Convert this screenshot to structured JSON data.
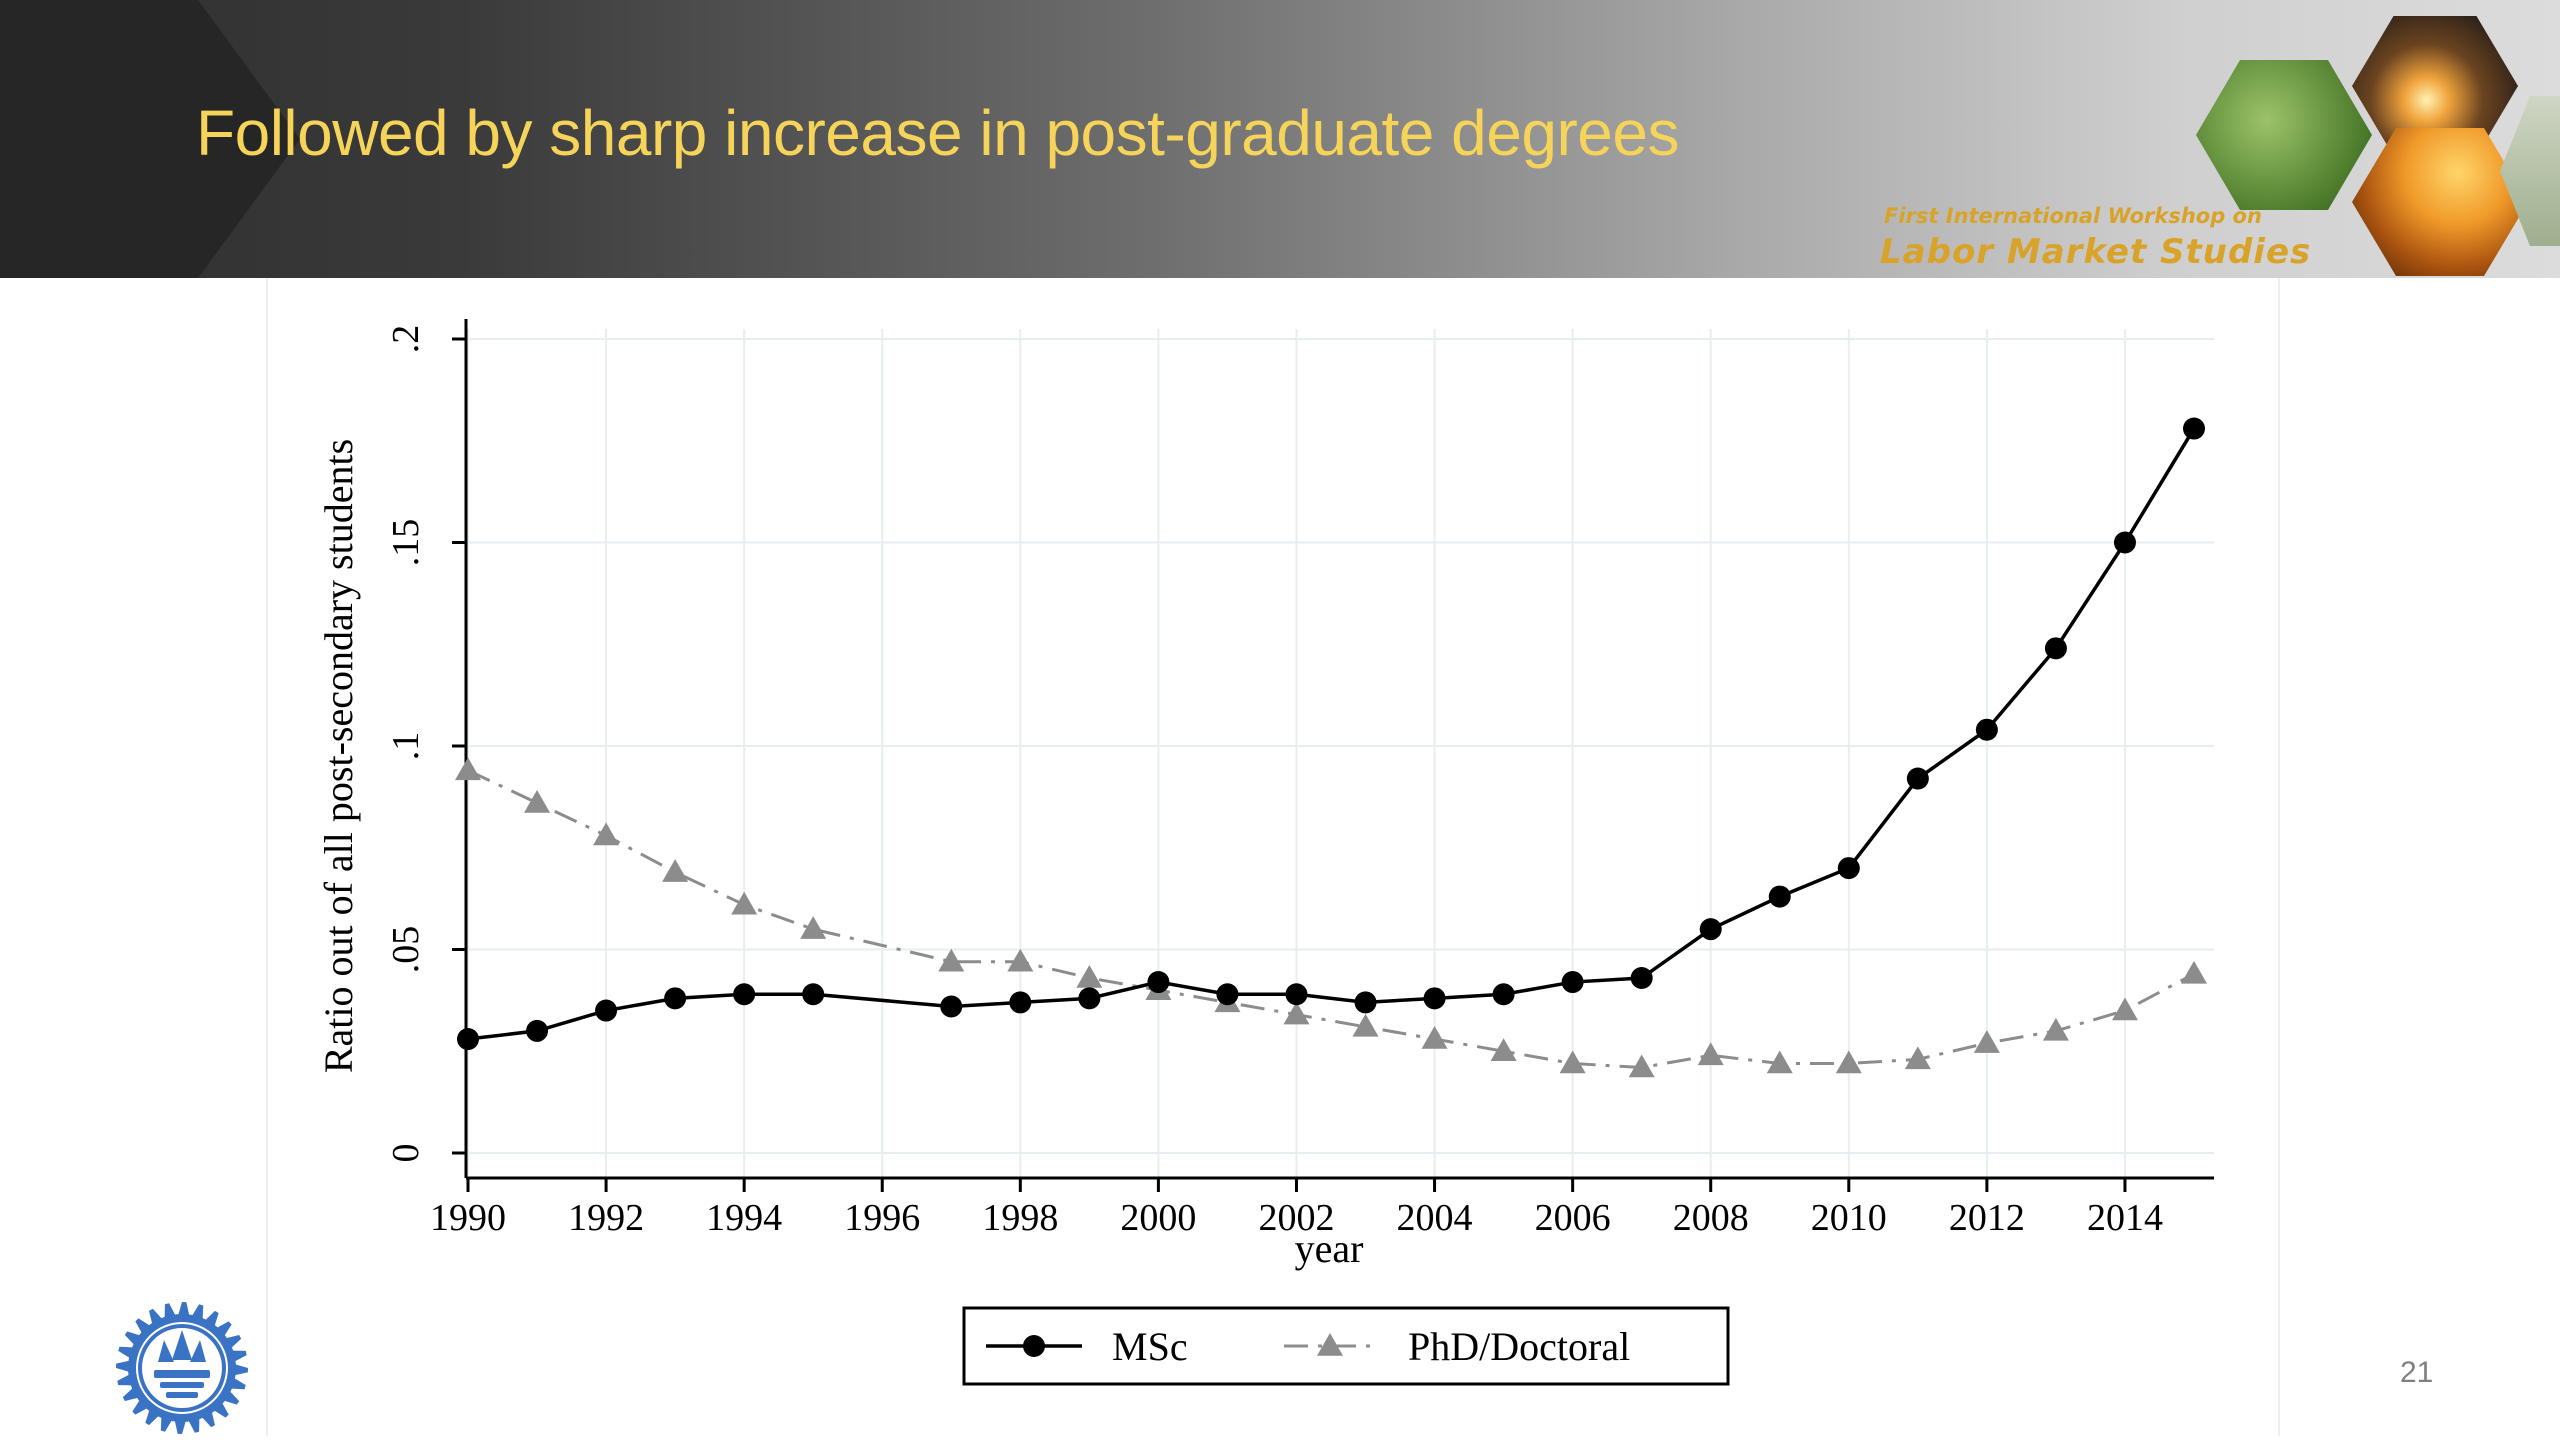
{
  "slide": {
    "title": "Followed by sharp increase in post-graduate degrees",
    "workshop_line1": "First International Workshop on",
    "workshop_line2": "Labor Market Studies",
    "page_number": "21"
  },
  "colors": {
    "title": "#f6d45a",
    "workshop_text": "#d9a329",
    "msc_series": "#000000",
    "phd_series": "#8c8c8c",
    "logo": "#3b73c4"
  },
  "chart_data": {
    "type": "line",
    "title": "",
    "xlabel": "year",
    "ylabel": "Ratio out of all post-secondary students",
    "xlim": [
      1990,
      2015
    ],
    "ylim": [
      0,
      0.2
    ],
    "x_ticks": [
      1990,
      1992,
      1994,
      1996,
      1998,
      2000,
      2002,
      2004,
      2006,
      2008,
      2010,
      2012,
      2014
    ],
    "x_tick_labels": [
      "1990",
      "1992",
      "1994",
      "1996",
      "1998",
      "2000",
      "2002",
      "2004",
      "2006",
      "2008",
      "2010",
      "2012",
      "2014"
    ],
    "y_ticks": [
      0,
      0.05,
      0.1,
      0.15,
      0.2
    ],
    "y_tick_labels": [
      "0",
      ".05",
      ".1",
      ".15",
      ".2"
    ],
    "grid": true,
    "legend_position": "bottom",
    "series": [
      {
        "name": "MSc",
        "marker": "circle",
        "line_style": "solid",
        "points": [
          [
            1990,
            0.028
          ],
          [
            1991,
            0.03
          ],
          [
            1992,
            0.035
          ],
          [
            1993,
            0.038
          ],
          [
            1994,
            0.039
          ],
          [
            1995,
            0.039
          ],
          [
            1997,
            0.036
          ],
          [
            1998,
            0.037
          ],
          [
            1999,
            0.038
          ],
          [
            2000,
            0.042
          ],
          [
            2001,
            0.039
          ],
          [
            2002,
            0.039
          ],
          [
            2003,
            0.037
          ],
          [
            2004,
            0.038
          ],
          [
            2005,
            0.039
          ],
          [
            2006,
            0.042
          ],
          [
            2007,
            0.043
          ],
          [
            2008,
            0.055
          ],
          [
            2009,
            0.063
          ],
          [
            2010,
            0.07
          ],
          [
            2011,
            0.092
          ],
          [
            2012,
            0.104
          ],
          [
            2013,
            0.124
          ],
          [
            2014,
            0.15
          ],
          [
            2015,
            0.178
          ]
        ]
      },
      {
        "name": "PhD/Doctoral",
        "marker": "triangle",
        "line_style": "dash-dot",
        "points": [
          [
            1990,
            0.094
          ],
          [
            1991,
            0.086
          ],
          [
            1992,
            0.078
          ],
          [
            1993,
            0.069
          ],
          [
            1994,
            0.061
          ],
          [
            1995,
            0.055
          ],
          [
            1997,
            0.047
          ],
          [
            1998,
            0.047
          ],
          [
            1999,
            0.043
          ],
          [
            2000,
            0.04
          ],
          [
            2001,
            0.037
          ],
          [
            2002,
            0.034
          ],
          [
            2003,
            0.031
          ],
          [
            2004,
            0.028
          ],
          [
            2005,
            0.025
          ],
          [
            2006,
            0.022
          ],
          [
            2007,
            0.021
          ],
          [
            2008,
            0.024
          ],
          [
            2009,
            0.022
          ],
          [
            2010,
            0.022
          ],
          [
            2011,
            0.023
          ],
          [
            2012,
            0.027
          ],
          [
            2013,
            0.03
          ],
          [
            2014,
            0.035
          ],
          [
            2015,
            0.044
          ]
        ]
      }
    ]
  }
}
